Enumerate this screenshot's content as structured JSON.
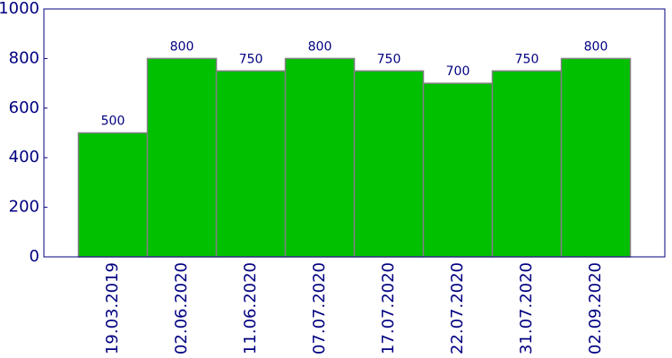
{
  "chart_data": {
    "type": "bar",
    "categories": [
      "19.03.2019",
      "02.06.2020",
      "11.06.2020",
      "07.07.2020",
      "17.07.2020",
      "22.07.2020",
      "31.07.2020",
      "02.09.2020"
    ],
    "values": [
      500,
      800,
      750,
      800,
      750,
      700,
      750,
      800
    ],
    "color": "#00c000",
    "ylim": [
      0,
      1000
    ],
    "yticks": [
      0,
      200,
      400,
      600,
      800,
      1000
    ],
    "grid": false
  }
}
